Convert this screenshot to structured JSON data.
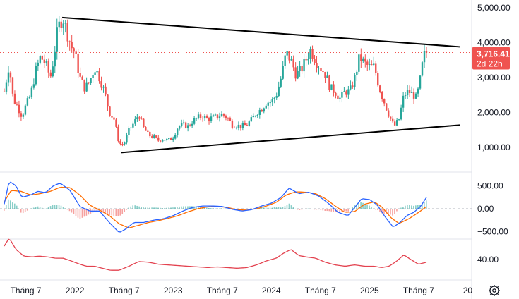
{
  "chart_data": {
    "type": "candlestick",
    "price_axis": {
      "ticks": [
        {
          "value": 5000,
          "label": "5,000.00"
        },
        {
          "value": 4000,
          "label": "4,000.00"
        },
        {
          "value": 3000,
          "label": "3,000.00"
        },
        {
          "value": 2000,
          "label": "2,000.00"
        },
        {
          "value": 1000,
          "label": "1,000.00"
        }
      ],
      "ylim": [
        350,
        5300
      ]
    },
    "current_price": {
      "value": 3716.41,
      "label": "3,716.41",
      "countdown": "2d 22h",
      "color": "#ef5350"
    },
    "macd_axis": {
      "ticks": [
        {
          "value": 500,
          "label": "500.00"
        },
        {
          "value": 0,
          "label": "0.00"
        },
        {
          "value": -500,
          "label": "−500.00"
        }
      ],
      "ylim": [
        -700,
        700
      ]
    },
    "rsi_axis": {
      "ticks": [
        {
          "value": 40,
          "label": "40.00"
        }
      ],
      "ylim": [
        10,
        95
      ]
    },
    "time_axis": {
      "labels": [
        "Tháng 7",
        "2022",
        "Tháng 7",
        "2023",
        "Tháng 7",
        "2024",
        "Tháng 7",
        "2025",
        "Tháng 7",
        "20"
      ],
      "label_dates": [
        2021.5,
        2022.0,
        2022.5,
        2023.0,
        2023.5,
        2024.0,
        2024.5,
        2025.0,
        2025.5,
        2026.0
      ]
    },
    "price_series": [
      {
        "t": 2021.28,
        "v": 2600
      },
      {
        "t": 2021.33,
        "v": 3400
      },
      {
        "t": 2021.37,
        "v": 2400
      },
      {
        "t": 2021.41,
        "v": 2200
      },
      {
        "t": 2021.46,
        "v": 1900
      },
      {
        "t": 2021.5,
        "v": 2200
      },
      {
        "t": 2021.55,
        "v": 2500
      },
      {
        "t": 2021.6,
        "v": 3200
      },
      {
        "t": 2021.65,
        "v": 3600
      },
      {
        "t": 2021.7,
        "v": 3400
      },
      {
        "t": 2021.75,
        "v": 3000
      },
      {
        "t": 2021.78,
        "v": 3500
      },
      {
        "t": 2021.82,
        "v": 4300
      },
      {
        "t": 2021.85,
        "v": 4600
      },
      {
        "t": 2021.88,
        "v": 4700
      },
      {
        "t": 2021.92,
        "v": 4300
      },
      {
        "t": 2021.96,
        "v": 3900
      },
      {
        "t": 2022.0,
        "v": 3700
      },
      {
        "t": 2022.05,
        "v": 3000
      },
      {
        "t": 2022.1,
        "v": 2700
      },
      {
        "t": 2022.15,
        "v": 2900
      },
      {
        "t": 2022.2,
        "v": 3300
      },
      {
        "t": 2022.25,
        "v": 3000
      },
      {
        "t": 2022.3,
        "v": 2600
      },
      {
        "t": 2022.35,
        "v": 2000
      },
      {
        "t": 2022.4,
        "v": 1800
      },
      {
        "t": 2022.45,
        "v": 1100
      },
      {
        "t": 2022.5,
        "v": 1100
      },
      {
        "t": 2022.55,
        "v": 1500
      },
      {
        "t": 2022.6,
        "v": 1700
      },
      {
        "t": 2022.65,
        "v": 1950
      },
      {
        "t": 2022.7,
        "v": 1550
      },
      {
        "t": 2022.75,
        "v": 1350
      },
      {
        "t": 2022.8,
        "v": 1300
      },
      {
        "t": 2022.85,
        "v": 1200
      },
      {
        "t": 2022.9,
        "v": 1250
      },
      {
        "t": 2022.95,
        "v": 1200
      },
      {
        "t": 2023.0,
        "v": 1300
      },
      {
        "t": 2023.05,
        "v": 1600
      },
      {
        "t": 2023.1,
        "v": 1650
      },
      {
        "t": 2023.15,
        "v": 1600
      },
      {
        "t": 2023.2,
        "v": 1750
      },
      {
        "t": 2023.25,
        "v": 1850
      },
      {
        "t": 2023.3,
        "v": 1900
      },
      {
        "t": 2023.35,
        "v": 1800
      },
      {
        "t": 2023.4,
        "v": 1850
      },
      {
        "t": 2023.45,
        "v": 1880
      },
      {
        "t": 2023.5,
        "v": 1950
      },
      {
        "t": 2023.55,
        "v": 1850
      },
      {
        "t": 2023.6,
        "v": 1650
      },
      {
        "t": 2023.65,
        "v": 1630
      },
      {
        "t": 2023.7,
        "v": 1600
      },
      {
        "t": 2023.75,
        "v": 1650
      },
      {
        "t": 2023.8,
        "v": 1800
      },
      {
        "t": 2023.85,
        "v": 2000
      },
      {
        "t": 2023.9,
        "v": 2100
      },
      {
        "t": 2023.95,
        "v": 2300
      },
      {
        "t": 2024.0,
        "v": 2300
      },
      {
        "t": 2024.05,
        "v": 2500
      },
      {
        "t": 2024.1,
        "v": 3000
      },
      {
        "t": 2024.15,
        "v": 3700
      },
      {
        "t": 2024.2,
        "v": 3500
      },
      {
        "t": 2024.25,
        "v": 3100
      },
      {
        "t": 2024.3,
        "v": 3200
      },
      {
        "t": 2024.35,
        "v": 3500
      },
      {
        "t": 2024.4,
        "v": 3800
      },
      {
        "t": 2024.45,
        "v": 3500
      },
      {
        "t": 2024.5,
        "v": 3300
      },
      {
        "t": 2024.55,
        "v": 3100
      },
      {
        "t": 2024.6,
        "v": 2700
      },
      {
        "t": 2024.65,
        "v": 2600
      },
      {
        "t": 2024.7,
        "v": 2400
      },
      {
        "t": 2024.75,
        "v": 2600
      },
      {
        "t": 2024.8,
        "v": 2600
      },
      {
        "t": 2024.85,
        "v": 3000
      },
      {
        "t": 2024.9,
        "v": 3600
      },
      {
        "t": 2024.95,
        "v": 3400
      },
      {
        "t": 2025.0,
        "v": 3300
      },
      {
        "t": 2025.05,
        "v": 3300
      },
      {
        "t": 2025.1,
        "v": 2700
      },
      {
        "t": 2025.15,
        "v": 2300
      },
      {
        "t": 2025.2,
        "v": 1900
      },
      {
        "t": 2025.25,
        "v": 1600
      },
      {
        "t": 2025.3,
        "v": 1800
      },
      {
        "t": 2025.35,
        "v": 2500
      },
      {
        "t": 2025.4,
        "v": 2600
      },
      {
        "t": 2025.45,
        "v": 2500
      },
      {
        "t": 2025.48,
        "v": 2400
      },
      {
        "t": 2025.52,
        "v": 3000
      },
      {
        "t": 2025.55,
        "v": 3600
      },
      {
        "t": 2025.58,
        "v": 3716
      }
    ],
    "trendlines": [
      {
        "name": "upper",
        "from": {
          "t": 2021.87,
          "v": 4720
        },
        "to": {
          "t": 2025.92,
          "v": 3880
        }
      },
      {
        "name": "lower",
        "from": {
          "t": 2022.47,
          "v": 850
        },
        "to": {
          "t": 2025.92,
          "v": 1640
        }
      }
    ],
    "macd_line": [
      {
        "t": 2021.28,
        "v": 100
      },
      {
        "t": 2021.33,
        "v": 600
      },
      {
        "t": 2021.4,
        "v": 500
      },
      {
        "t": 2021.46,
        "v": 250
      },
      {
        "t": 2021.55,
        "v": 300
      },
      {
        "t": 2021.62,
        "v": 380
      },
      {
        "t": 2021.7,
        "v": 350
      },
      {
        "t": 2021.78,
        "v": 500
      },
      {
        "t": 2021.85,
        "v": 560
      },
      {
        "t": 2021.95,
        "v": 400
      },
      {
        "t": 2022.05,
        "v": 50
      },
      {
        "t": 2022.15,
        "v": -50
      },
      {
        "t": 2022.25,
        "v": -50
      },
      {
        "t": 2022.35,
        "v": -300
      },
      {
        "t": 2022.45,
        "v": -520
      },
      {
        "t": 2022.52,
        "v": -440
      },
      {
        "t": 2022.6,
        "v": -300
      },
      {
        "t": 2022.7,
        "v": -300
      },
      {
        "t": 2022.8,
        "v": -250
      },
      {
        "t": 2022.9,
        "v": -220
      },
      {
        "t": 2023.0,
        "v": -150
      },
      {
        "t": 2023.1,
        "v": -50
      },
      {
        "t": 2023.2,
        "v": 30
      },
      {
        "t": 2023.3,
        "v": 60
      },
      {
        "t": 2023.4,
        "v": 60
      },
      {
        "t": 2023.5,
        "v": 50
      },
      {
        "t": 2023.6,
        "v": -10
      },
      {
        "t": 2023.7,
        "v": -50
      },
      {
        "t": 2023.8,
        "v": -20
      },
      {
        "t": 2023.9,
        "v": 60
      },
      {
        "t": 2024.0,
        "v": 120
      },
      {
        "t": 2024.1,
        "v": 250
      },
      {
        "t": 2024.18,
        "v": 450
      },
      {
        "t": 2024.28,
        "v": 330
      },
      {
        "t": 2024.38,
        "v": 360
      },
      {
        "t": 2024.48,
        "v": 280
      },
      {
        "t": 2024.58,
        "v": 120
      },
      {
        "t": 2024.68,
        "v": -80
      },
      {
        "t": 2024.78,
        "v": -150
      },
      {
        "t": 2024.85,
        "v": 30
      },
      {
        "t": 2024.92,
        "v": 220
      },
      {
        "t": 2025.0,
        "v": 200
      },
      {
        "t": 2025.08,
        "v": 80
      },
      {
        "t": 2025.16,
        "v": -180
      },
      {
        "t": 2025.24,
        "v": -400
      },
      {
        "t": 2025.3,
        "v": -320
      },
      {
        "t": 2025.38,
        "v": -150
      },
      {
        "t": 2025.45,
        "v": -80
      },
      {
        "t": 2025.52,
        "v": 50
      },
      {
        "t": 2025.58,
        "v": 250
      }
    ],
    "signal_line": [
      {
        "t": 2021.28,
        "v": 150
      },
      {
        "t": 2021.35,
        "v": 400
      },
      {
        "t": 2021.45,
        "v": 380
      },
      {
        "t": 2021.55,
        "v": 300
      },
      {
        "t": 2021.65,
        "v": 330
      },
      {
        "t": 2021.75,
        "v": 380
      },
      {
        "t": 2021.85,
        "v": 470
      },
      {
        "t": 2021.95,
        "v": 460
      },
      {
        "t": 2022.05,
        "v": 300
      },
      {
        "t": 2022.15,
        "v": 80
      },
      {
        "t": 2022.25,
        "v": -30
      },
      {
        "t": 2022.35,
        "v": -150
      },
      {
        "t": 2022.45,
        "v": -330
      },
      {
        "t": 2022.55,
        "v": -420
      },
      {
        "t": 2022.65,
        "v": -360
      },
      {
        "t": 2022.75,
        "v": -300
      },
      {
        "t": 2022.85,
        "v": -260
      },
      {
        "t": 2022.95,
        "v": -210
      },
      {
        "t": 2023.05,
        "v": -150
      },
      {
        "t": 2023.15,
        "v": -70
      },
      {
        "t": 2023.25,
        "v": 0
      },
      {
        "t": 2023.35,
        "v": 40
      },
      {
        "t": 2023.45,
        "v": 50
      },
      {
        "t": 2023.55,
        "v": 30
      },
      {
        "t": 2023.65,
        "v": -20
      },
      {
        "t": 2023.75,
        "v": -30
      },
      {
        "t": 2023.85,
        "v": 0
      },
      {
        "t": 2023.95,
        "v": 60
      },
      {
        "t": 2024.05,
        "v": 140
      },
      {
        "t": 2024.15,
        "v": 300
      },
      {
        "t": 2024.25,
        "v": 370
      },
      {
        "t": 2024.35,
        "v": 360
      },
      {
        "t": 2024.45,
        "v": 330
      },
      {
        "t": 2024.55,
        "v": 220
      },
      {
        "t": 2024.65,
        "v": 60
      },
      {
        "t": 2024.75,
        "v": -80
      },
      {
        "t": 2024.85,
        "v": -60
      },
      {
        "t": 2024.95,
        "v": 100
      },
      {
        "t": 2025.05,
        "v": 150
      },
      {
        "t": 2025.13,
        "v": 30
      },
      {
        "t": 2025.22,
        "v": -200
      },
      {
        "t": 2025.3,
        "v": -320
      },
      {
        "t": 2025.4,
        "v": -220
      },
      {
        "t": 2025.5,
        "v": -80
      },
      {
        "t": 2025.58,
        "v": 50
      }
    ],
    "rsi_line": [
      {
        "t": 2021.28,
        "v": 60
      },
      {
        "t": 2021.33,
        "v": 72
      },
      {
        "t": 2021.4,
        "v": 55
      },
      {
        "t": 2021.48,
        "v": 45
      },
      {
        "t": 2021.56,
        "v": 44
      },
      {
        "t": 2021.64,
        "v": 45
      },
      {
        "t": 2021.72,
        "v": 44
      },
      {
        "t": 2021.8,
        "v": 42
      },
      {
        "t": 2021.88,
        "v": 42
      },
      {
        "t": 2021.96,
        "v": 38
      },
      {
        "t": 2022.05,
        "v": 33
      },
      {
        "t": 2022.12,
        "v": 30
      },
      {
        "t": 2022.2,
        "v": 30
      },
      {
        "t": 2022.28,
        "v": 27
      },
      {
        "t": 2022.36,
        "v": 24
      },
      {
        "t": 2022.45,
        "v": 24
      },
      {
        "t": 2022.55,
        "v": 30
      },
      {
        "t": 2022.65,
        "v": 37
      },
      {
        "t": 2022.75,
        "v": 36
      },
      {
        "t": 2022.85,
        "v": 33
      },
      {
        "t": 2022.95,
        "v": 32
      },
      {
        "t": 2023.05,
        "v": 31
      },
      {
        "t": 2023.15,
        "v": 30
      },
      {
        "t": 2023.25,
        "v": 29
      },
      {
        "t": 2023.35,
        "v": 28
      },
      {
        "t": 2023.45,
        "v": 29
      },
      {
        "t": 2023.55,
        "v": 28
      },
      {
        "t": 2023.65,
        "v": 27
      },
      {
        "t": 2023.75,
        "v": 28
      },
      {
        "t": 2023.85,
        "v": 32
      },
      {
        "t": 2023.95,
        "v": 38
      },
      {
        "t": 2024.05,
        "v": 42
      },
      {
        "t": 2024.13,
        "v": 50
      },
      {
        "t": 2024.2,
        "v": 55
      },
      {
        "t": 2024.28,
        "v": 46
      },
      {
        "t": 2024.35,
        "v": 44
      },
      {
        "t": 2024.45,
        "v": 42
      },
      {
        "t": 2024.55,
        "v": 36
      },
      {
        "t": 2024.65,
        "v": 32
      },
      {
        "t": 2024.75,
        "v": 30
      },
      {
        "t": 2024.85,
        "v": 32
      },
      {
        "t": 2024.95,
        "v": 30
      },
      {
        "t": 2025.05,
        "v": 30
      },
      {
        "t": 2025.12,
        "v": 28
      },
      {
        "t": 2025.2,
        "v": 30
      },
      {
        "t": 2025.28,
        "v": 38
      },
      {
        "t": 2025.35,
        "v": 47
      },
      {
        "t": 2025.42,
        "v": 40
      },
      {
        "t": 2025.5,
        "v": 33
      },
      {
        "t": 2025.58,
        "v": 36
      }
    ],
    "colors": {
      "bull": "#26a69a",
      "bear": "#ef5350",
      "trendline": "#000000",
      "macd": "#2962ff",
      "signal": "#ff6d00",
      "histogram_up": "#26a69a",
      "histogram_down": "#ef5350",
      "rsi": "#e3424f"
    }
  },
  "toolbar": {
    "settings_icon": "gear-icon"
  }
}
